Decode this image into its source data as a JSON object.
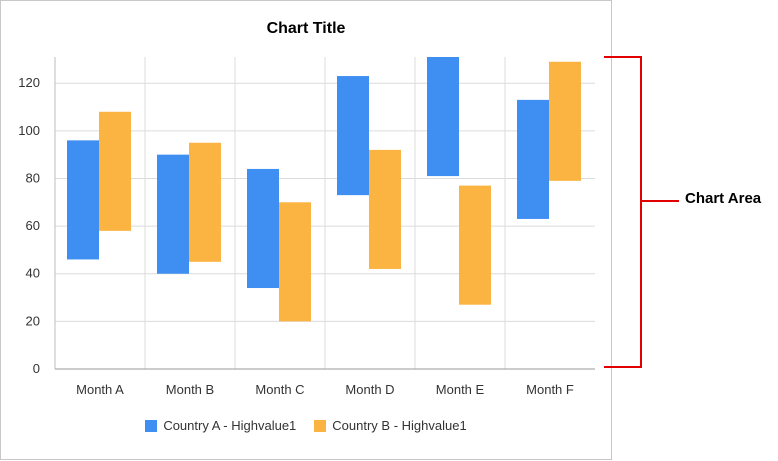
{
  "chart_data": {
    "type": "bar",
    "subtype": "range-column",
    "title": "Chart Title",
    "categories": [
      "Month A",
      "Month B",
      "Month C",
      "Month D",
      "Month E",
      "Month F"
    ],
    "series": [
      {
        "name": "Country A - Highvalue1",
        "color": "#3f8ef2",
        "low": [
          46,
          40,
          34,
          73,
          81,
          63
        ],
        "high": [
          96,
          90,
          84,
          123,
          131,
          113
        ]
      },
      {
        "name": "Country B - Highvalue1",
        "color": "#fbb442",
        "low": [
          58,
          45,
          20,
          42,
          27,
          79
        ],
        "high": [
          108,
          95,
          70,
          92,
          77,
          129
        ]
      }
    ],
    "ylim": [
      0,
      131
    ],
    "yticks": [
      0,
      20,
      40,
      60,
      80,
      100,
      120
    ],
    "grid": true,
    "legend_position": "bottom"
  },
  "annotation": {
    "label": "Chart Area",
    "color": "#e00000"
  }
}
